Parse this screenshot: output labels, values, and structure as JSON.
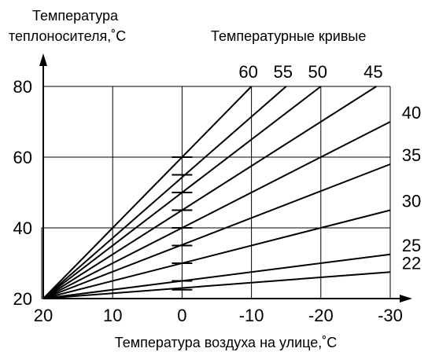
{
  "chart_data": {
    "type": "line",
    "ylabel_lines": [
      "Температура",
      "теплоносителя,˚С"
    ],
    "xlabel": "Температура воздуха на улице,˚С",
    "legend_title": "Температурные кривые",
    "xlim": [
      20,
      -30
    ],
    "ylim": [
      20,
      80
    ],
    "x_ticks": [
      "20",
      "10",
      "0",
      "-10",
      "-20",
      "-30"
    ],
    "x_tick_values": [
      20,
      10,
      0,
      -10,
      -20,
      -30
    ],
    "y_ticks": [
      "20",
      "40",
      "60",
      "80"
    ],
    "y_tick_values": [
      20,
      40,
      60,
      80
    ],
    "grid": true,
    "series": [
      {
        "name": "60",
        "x": [
          20,
          -10
        ],
        "y": [
          20,
          80
        ]
      },
      {
        "name": "55",
        "x": [
          20,
          -15
        ],
        "y": [
          20,
          80
        ]
      },
      {
        "name": "50",
        "x": [
          20,
          -20
        ],
        "y": [
          20,
          80
        ]
      },
      {
        "name": "45",
        "x": [
          20,
          -28
        ],
        "y": [
          20,
          80
        ]
      },
      {
        "name": "40",
        "x": [
          20,
          -30
        ],
        "y": [
          20,
          70
        ]
      },
      {
        "name": "35",
        "x": [
          20,
          -30
        ],
        "y": [
          20,
          58
        ]
      },
      {
        "name": "30",
        "x": [
          20,
          -30
        ],
        "y": [
          20,
          45
        ]
      },
      {
        "name": "25",
        "x": [
          20,
          -30
        ],
        "y": [
          20,
          32.5
        ]
      },
      {
        "name": "22",
        "x": [
          20,
          -30
        ],
        "y": [
          20,
          27.5
        ]
      }
    ],
    "zero_marks_y": [
      22.5,
      25,
      30,
      35,
      40,
      45,
      50,
      55,
      60
    ]
  }
}
